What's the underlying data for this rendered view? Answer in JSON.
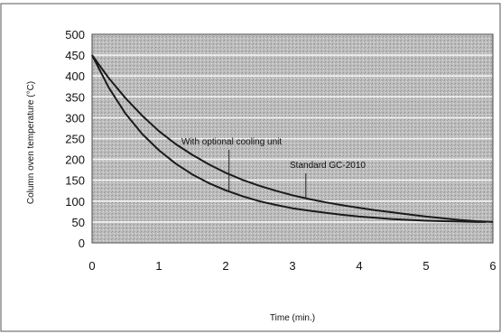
{
  "chart_data": {
    "type": "line",
    "title": "",
    "xlabel": "Time (min.)",
    "ylabel": "Column oven temperature (°C)",
    "xlim": [
      0,
      6
    ],
    "ylim": [
      0,
      500
    ],
    "x_ticks": [
      "0",
      "1",
      "2",
      "3",
      "4",
      "5",
      "6"
    ],
    "y_ticks": [
      "0",
      "50",
      "100",
      "150",
      "200",
      "250",
      "300",
      "350",
      "400",
      "450",
      "500"
    ],
    "grid": "horizontal",
    "legend": "none",
    "colors": {
      "plot_bg": "#b9b9b9",
      "grid": "#f4f4f4",
      "line": "#1a1a1a",
      "frame": "#444444"
    },
    "series": [
      {
        "x": [
          0,
          0.25,
          0.5,
          0.75,
          1,
          1.25,
          1.5,
          1.75,
          2,
          2.25,
          2.5,
          2.75,
          3,
          3.25,
          3.5,
          3.75,
          4,
          4.25,
          4.5,
          4.75,
          5,
          5.25,
          5.5,
          5.75,
          5.9
        ],
        "y": [
          450,
          372,
          310,
          261,
          222,
          190,
          164,
          143,
          126,
          112,
          100,
          91,
          83,
          77,
          72,
          67,
          63,
          60,
          57,
          55,
          53,
          52,
          51,
          50,
          50
        ]
      },
      {
        "x": [
          0,
          0.25,
          0.5,
          0.75,
          1,
          1.25,
          1.5,
          1.75,
          2,
          2.25,
          2.5,
          2.75,
          3,
          3.25,
          3.5,
          3.75,
          4,
          4.25,
          4.5,
          4.75,
          5,
          5.25,
          5.5,
          5.75,
          6
        ],
        "y": [
          450,
          395,
          347,
          305,
          268,
          237,
          211,
          188,
          168,
          151,
          137,
          125,
          114,
          105,
          97,
          90,
          84,
          78,
          73,
          68,
          63,
          59,
          55,
          52,
          50
        ]
      }
    ],
    "annotations": [
      {
        "text": "With optional cooling unit",
        "x": 2.05,
        "y": 125
      },
      {
        "text": "Standard GC-2010",
        "x": 3.2,
        "y": 105
      }
    ]
  }
}
